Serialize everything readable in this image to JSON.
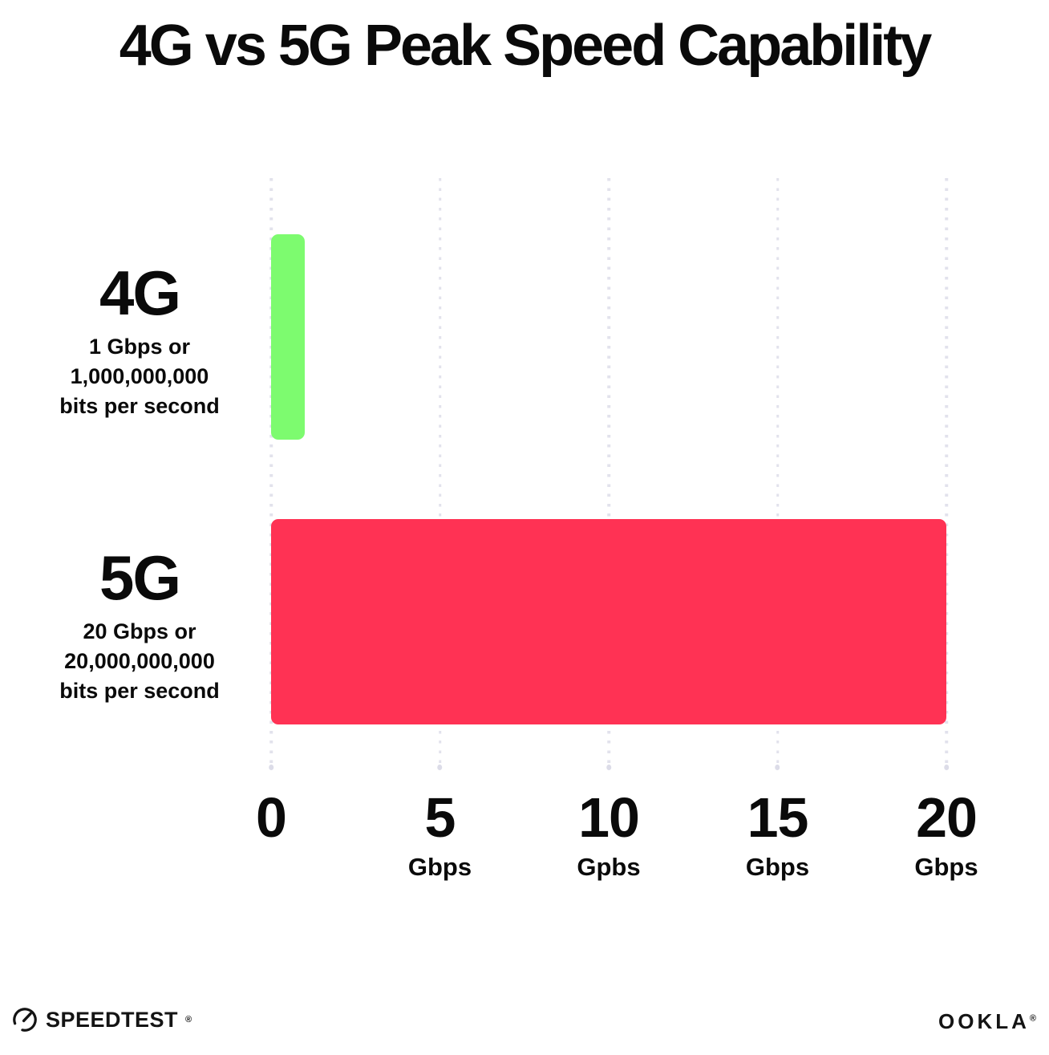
{
  "title": "4G vs 5G Peak Speed Capability",
  "chart_data": {
    "type": "bar",
    "orientation": "horizontal",
    "title": "4G vs 5G Peak Speed Capability",
    "categories": [
      "4G",
      "5G"
    ],
    "values": [
      1,
      20
    ],
    "xlim": [
      0,
      20
    ],
    "x_unit": "Gbps",
    "grid": "dotted vertical gridlines at 0, 5, 10, 15, 20",
    "legend": "none",
    "rows": [
      {
        "label": "4G",
        "value": 1,
        "color": "#7dfb6f",
        "sublines": [
          "1 Gbps or",
          "1,000,000,000",
          "bits per second"
        ]
      },
      {
        "label": "5G",
        "value": 20,
        "color": "#ff3254",
        "sublines": [
          "20 Gbps or",
          "20,000,000,000",
          "bits per second"
        ]
      }
    ],
    "x_ticks": [
      {
        "value": "0",
        "unit": ""
      },
      {
        "value": "5",
        "unit": "Gbps"
      },
      {
        "value": "10",
        "unit": "Gpbs"
      },
      {
        "value": "15",
        "unit": "Gbps"
      },
      {
        "value": "20",
        "unit": "Gbps"
      }
    ]
  },
  "footer": {
    "speedtest": {
      "label": "SPEEDTEST",
      "mark": "®"
    },
    "ookla": {
      "label": "OOKLA",
      "mark": "®"
    }
  }
}
